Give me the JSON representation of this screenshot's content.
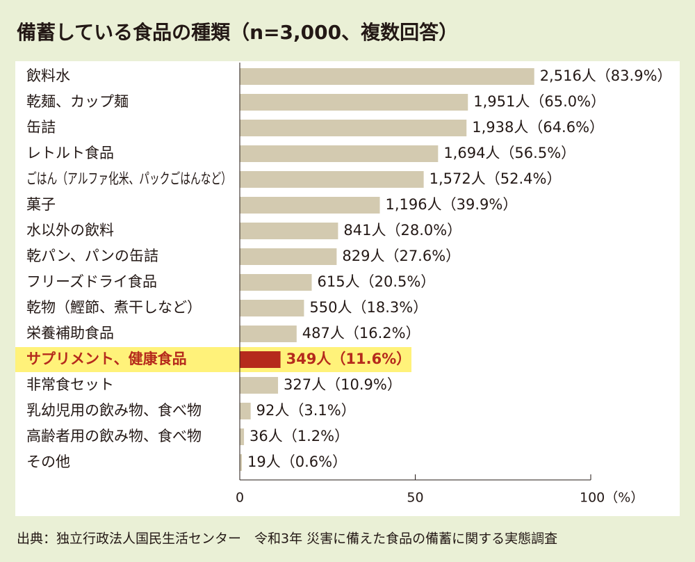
{
  "chart_data": {
    "type": "barh",
    "title": "備蓄している食品の種類（n=3,000、複数回答）",
    "categories": [
      "飲料水",
      "乾麺、カップ麺",
      "缶詰",
      "レトルト食品",
      "ごはん（アルファ化米、パックごはんなど）",
      "菓子",
      "水以外の飲料",
      "乾パン、パンの缶詰",
      "フリーズドライ食品",
      "乾物（鰹節、煮干しなど）",
      "栄養補助食品",
      "サプリメント、健康食品",
      "非常食セット",
      "乳幼児用の飲み物、食べ物",
      "高齢者用の飲み物、食べ物",
      "その他"
    ],
    "values": [
      83.9,
      65.0,
      64.6,
      56.5,
      52.4,
      39.9,
      28.0,
      27.6,
      20.5,
      18.3,
      16.2,
      11.6,
      10.9,
      3.1,
      1.2,
      0.6
    ],
    "value_labels": [
      "2,516人（83.9%）",
      "1,951人（65.0%）",
      "1,938人（64.6%）",
      "1,694人（56.5%）",
      "1,572人（52.4%）",
      "1,196人（39.9%）",
      "841人（28.0%）",
      "829人（27.6%）",
      "615人（20.5%）",
      "550人（18.3%）",
      "487人（16.2%）",
      "349人（11.6%）",
      "327人（10.9%）",
      "92人（3.1%）",
      "36人（1.2%）",
      "19人（0.6%）"
    ],
    "color": "#d3cab0",
    "highlight": 11,
    "highlight_color": "#b52a1c",
    "xlim": [
      0,
      100
    ],
    "xticks": [
      0,
      50,
      {
        "value": 100,
        "label": "100（%）"
      }
    ],
    "source": "出典：独立行政法人国民生活センター　令和3年 災害に備えた食品の備蓄に関する実態調査"
  }
}
